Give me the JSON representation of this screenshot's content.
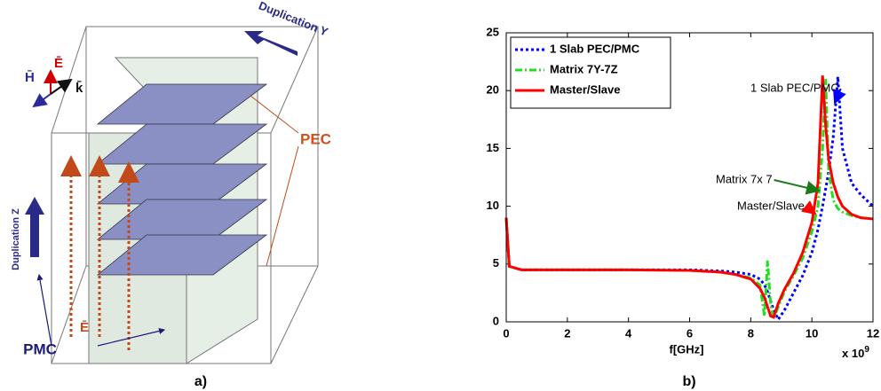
{
  "diagram": {
    "duplication_y": "Duplication Y",
    "duplication_z": "Duplication Z",
    "pec": "PEC",
    "pmc": "PMC",
    "e_field": "Ē",
    "h_field": "H̄",
    "k_vector": "k̄",
    "e_field_bottom": "Ē",
    "caption": "a)"
  },
  "chart_data": {
    "type": "line",
    "caption": "b)",
    "xlabel": "f[GHz]",
    "x_multiplier": {
      "base": "x 10",
      "exponent": "9"
    },
    "x": [
      0,
      0.1,
      0.5,
      2,
      4,
      6,
      7,
      7.5,
      8,
      8.3,
      8.45,
      8.55,
      8.65,
      8.75,
      8.9,
      9.1,
      9.4,
      9.7,
      10,
      10.2,
      10.35,
      10.45,
      10.55,
      10.7,
      10.85,
      11,
      11.3,
      11.6,
      12
    ],
    "series": [
      {
        "name": "1 Slab PEC/PMC",
        "color": "#0000ff",
        "style": "dotted",
        "values": [
          9,
          4.8,
          4.5,
          4.5,
          4.5,
          4.5,
          4.4,
          4.3,
          4.1,
          3.7,
          3.2,
          2.6,
          1.8,
          1,
          0.2,
          1,
          2.5,
          4,
          6,
          8,
          10,
          11.5,
          13,
          16,
          21.2,
          15,
          12,
          11,
          10
        ]
      },
      {
        "name": "Matrix 7Y-7Z",
        "color": "#22dd22",
        "style": "dashdot",
        "values": [
          9,
          4.8,
          4.5,
          4.5,
          4.5,
          4.45,
          4.3,
          4.1,
          3.8,
          3.2,
          0.5,
          5.3,
          1.5,
          0.3,
          1.3,
          2.6,
          4,
          5.5,
          7.8,
          10,
          15,
          21,
          13,
          10.5,
          9.8,
          9.5,
          9.2,
          9,
          8.9
        ]
      },
      {
        "name": "Master/Slave",
        "color": "#ff0000",
        "style": "solid",
        "values": [
          9,
          4.8,
          4.5,
          4.5,
          4.5,
          4.45,
          4.3,
          4.1,
          3.7,
          2.9,
          2.1,
          1.3,
          0.5,
          0.4,
          1.6,
          2.8,
          4.2,
          6,
          8.6,
          12,
          21.3,
          17,
          14,
          12,
          10.8,
          10,
          9.3,
          9,
          8.9
        ]
      }
    ],
    "annotations": [
      "1 Slab PEC/PMC",
      "Matrix 7x 7",
      "Master/Slave"
    ],
    "xlim": [
      0,
      12
    ],
    "xticks": [
      0,
      2,
      4,
      6,
      8,
      10,
      12
    ],
    "ylim": [
      0,
      25
    ],
    "yticks": [
      0,
      5,
      10,
      15,
      20,
      25
    ],
    "legend": "upper-left",
    "grid": false
  }
}
